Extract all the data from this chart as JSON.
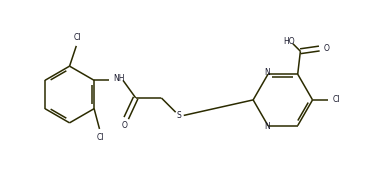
{
  "bg_color": "#ffffff",
  "line_color": "#2b2b00",
  "text_color": "#1a1a2e",
  "figsize": [
    3.74,
    1.89
  ],
  "dpi": 100,
  "xlim": [
    0,
    13
  ],
  "ylim": [
    0,
    7
  ]
}
